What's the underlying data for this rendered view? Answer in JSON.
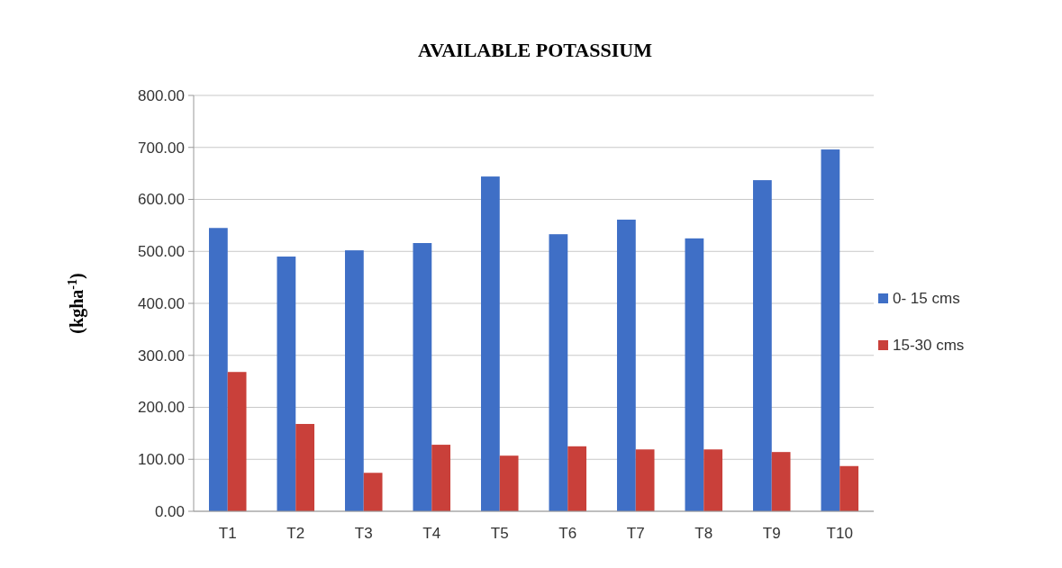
{
  "chart_data": {
    "type": "bar",
    "title": "AVAILABLE POTASSIUM",
    "ylabel": "(kgha$^{-1}$)",
    "categories": [
      "T1",
      "T2",
      "T3",
      "T4",
      "T5",
      "T6",
      "T7",
      "T8",
      "T9",
      "T10"
    ],
    "series": [
      {
        "name": "0- 15 cms",
        "color": "#3f6fc6",
        "values": [
          545,
          490,
          502,
          516,
          644,
          533,
          561,
          525,
          637,
          696
        ]
      },
      {
        "name": "15-30 cms",
        "color": "#c9403a",
        "values": [
          268,
          168,
          74,
          128,
          107,
          125,
          119,
          119,
          114,
          87
        ]
      }
    ],
    "ylim": [
      0,
      800
    ],
    "yticks": [
      {
        "value": 0,
        "label": "0.00"
      },
      {
        "value": 100,
        "label": "100.00"
      },
      {
        "value": 200,
        "label": "200.00"
      },
      {
        "value": 300,
        "label": "300.00"
      },
      {
        "value": 400,
        "label": "400.00"
      },
      {
        "value": 500,
        "label": "500.00"
      },
      {
        "value": 600,
        "label": "600.00"
      },
      {
        "value": 700,
        "label": "700.00"
      },
      {
        "value": 800,
        "label": "800.00"
      }
    ],
    "grid": "y",
    "legend": "right"
  }
}
